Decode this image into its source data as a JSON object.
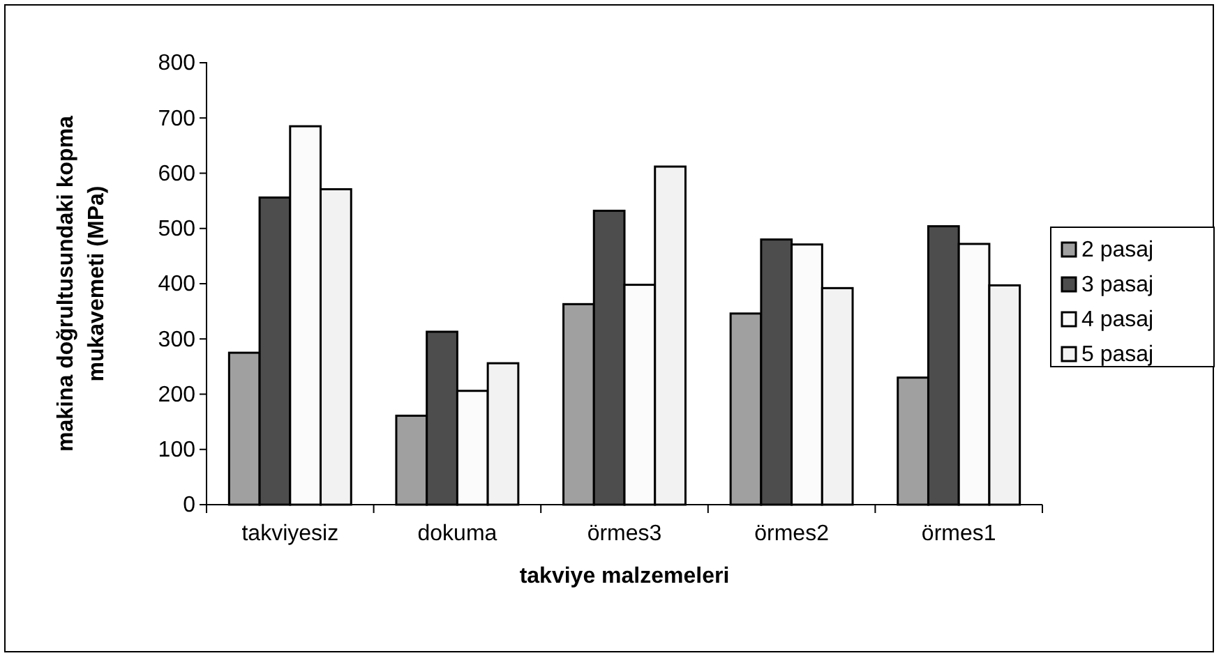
{
  "chart_data": {
    "type": "bar",
    "xlabel": "takviye malzemeleri",
    "ylabel": "makina doğrultusundaki kopma mukavemeti (MPa)",
    "categories": [
      "takviyesiz",
      "dokuma",
      "örmes3",
      "örmes2",
      "örmes1"
    ],
    "series": [
      {
        "name": "2 pasaj",
        "color": "#a0a0a0",
        "values": [
          275,
          161,
          363,
          346,
          230
        ]
      },
      {
        "name": "3 pasaj",
        "color": "#4d4d4d",
        "values": [
          556,
          313,
          532,
          480,
          504
        ]
      },
      {
        "name": "4 pasaj",
        "color": "#fbfbfb",
        "values": [
          685,
          206,
          398,
          471,
          472
        ]
      },
      {
        "name": "5 pasaj",
        "color": "#f2f2f2",
        "values": [
          571,
          256,
          612,
          392,
          397
        ]
      }
    ],
    "ylim": [
      0,
      800
    ],
    "yticks": [
      0,
      100,
      200,
      300,
      400,
      500,
      600,
      700,
      800
    ],
    "grid": false,
    "legend": "right"
  }
}
